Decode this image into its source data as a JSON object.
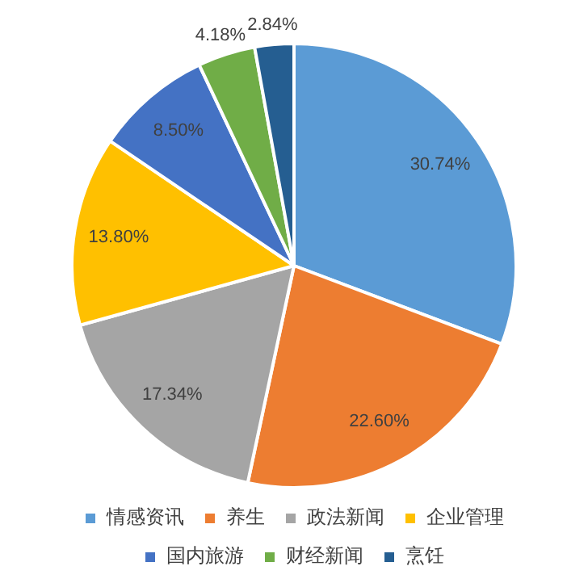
{
  "chart_data": {
    "type": "pie",
    "categories": [
      "情感资讯",
      "养生",
      "政法新闻",
      "企业管理",
      "国内旅游",
      "财经新闻",
      "烹饪"
    ],
    "values": [
      30.74,
      22.6,
      17.34,
      13.8,
      8.5,
      4.18,
      2.84
    ],
    "value_labels": [
      "30.74%",
      "22.60%",
      "17.34%",
      "13.80%",
      "8.50%",
      "4.18%",
      "2.84%"
    ],
    "colors": [
      "#5b9bd5",
      "#ed7d31",
      "#a5a5a5",
      "#ffc000",
      "#4472c4",
      "#70ad47",
      "#255e91"
    ],
    "legend": "bottom"
  }
}
